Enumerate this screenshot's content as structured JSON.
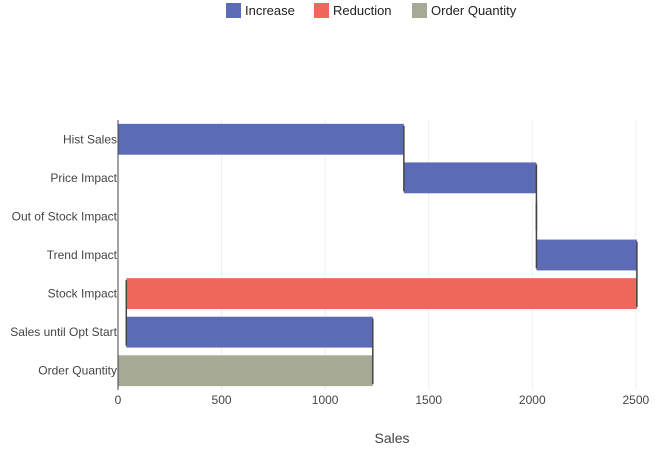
{
  "chart_data": {
    "type": "bar",
    "orientation": "horizontal",
    "subtype": "waterfall",
    "categories": [
      "Hist Sales",
      "Price Impact",
      "Out of Stock Impact",
      "Trend Impact",
      "Stock Impact",
      "Sales until Opt Start",
      "Order Quantity"
    ],
    "bars": [
      {
        "category": "Hist Sales",
        "start": 0,
        "end": 1380,
        "kind": "increase"
      },
      {
        "category": "Price Impact",
        "start": 1380,
        "end": 2020,
        "kind": "increase"
      },
      {
        "category": "Out of Stock Impact",
        "start": 2020,
        "end": 2020,
        "kind": "increase"
      },
      {
        "category": "Trend Impact",
        "start": 2020,
        "end": 2505,
        "kind": "increase"
      },
      {
        "category": "Stock Impact",
        "start": 2505,
        "end": 40,
        "kind": "reduction"
      },
      {
        "category": "Sales until Opt Start",
        "start": 40,
        "end": 1230,
        "kind": "increase"
      },
      {
        "category": "Order Quantity",
        "start": 0,
        "end": 1230,
        "kind": "total"
      }
    ],
    "xlabel": "Sales",
    "ylabel": "",
    "xlim": [
      0,
      2520
    ],
    "xticks": [
      0,
      500,
      1000,
      1500,
      2000,
      2500
    ],
    "grid": true,
    "legend_position": "top",
    "legend": [
      {
        "name": "Increase",
        "kind": "increase",
        "color": "#5c6bb5"
      },
      {
        "name": "Reduction",
        "kind": "reduction",
        "color": "#ef665a"
      },
      {
        "name": "Order Quantity",
        "kind": "total",
        "color": "#a7a997"
      }
    ],
    "colors": {
      "increase": "#5c6bb5",
      "reduction": "#ef665a",
      "total": "#a7a997",
      "connector": "#444444",
      "grid": "#eeeeee",
      "axis": "#444444"
    }
  }
}
